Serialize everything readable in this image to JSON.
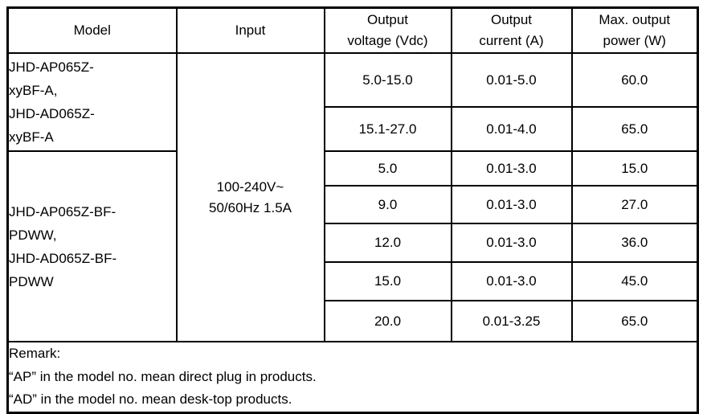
{
  "table": {
    "headers": {
      "model": "Model",
      "input": "Input",
      "voltage": "Output\nvoltage (Vdc)",
      "current": "Output\ncurrent (A)",
      "power": "Max. output\npower (W)"
    },
    "model_groups": [
      {
        "name": "JHD-AP065Z-\nxyBF-A,\nJHD-AD065Z-\nxyBF-A"
      },
      {
        "name": "JHD-AP065Z-BF-\nPDWW,\nJHD-AD065Z-BF-\nPDWW"
      }
    ],
    "input_value": "100-240V~\n50/60Hz 1.5A",
    "rows": [
      {
        "voltage": "5.0-15.0",
        "current": "0.01-5.0",
        "power": "60.0"
      },
      {
        "voltage": "15.1-27.0",
        "current": "0.01-4.0",
        "power": "65.0"
      },
      {
        "voltage": "5.0",
        "current": "0.01-3.0",
        "power": "15.0"
      },
      {
        "voltage": "9.0",
        "current": "0.01-3.0",
        "power": "27.0"
      },
      {
        "voltage": "12.0",
        "current": "0.01-3.0",
        "power": "36.0"
      },
      {
        "voltage": "15.0",
        "current": "0.01-3.0",
        "power": "45.0"
      },
      {
        "voltage": "20.0",
        "current": "0.01-3.25",
        "power": "65.0"
      }
    ],
    "remark": {
      "title": "Remark:",
      "lines": [
        "“AP” in the model no. mean direct plug in products.",
        "“AD” in the model no. mean desk-top products."
      ]
    }
  }
}
